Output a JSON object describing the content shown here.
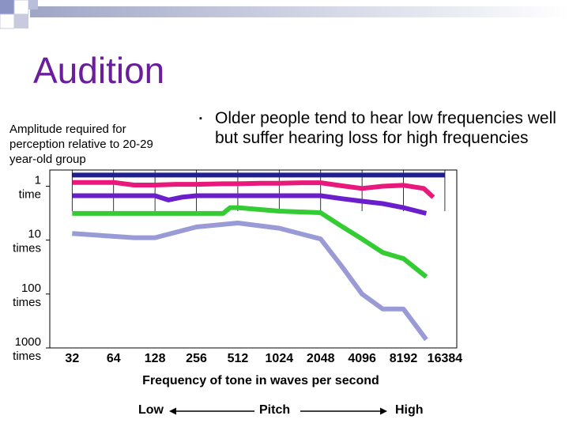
{
  "slide": {
    "title": "Audition",
    "y_description": "Amplitude required for perception relative to 20-29 year-old group",
    "bullet": "Older people tend to hear low frequencies well but suffer hearing loss for high frequencies",
    "pitch_low": "Low",
    "pitch_mid": "Pitch",
    "pitch_high": "High"
  },
  "chart_data": {
    "type": "line",
    "xlabel": "Frequency of tone in waves per second",
    "x_ticks": [
      "32",
      "64",
      "128",
      "256",
      "512",
      "1024",
      "2048",
      "4096",
      "8192",
      "16384"
    ],
    "y_ticks": [
      "1 time",
      "10 times",
      "100 times",
      "1000 times"
    ],
    "y_scale": "log",
    "y_direction": "amplitude increases downward",
    "ylim": [
      0.5,
      1000
    ],
    "grid": true,
    "series": [
      {
        "color": "#1f1f8f",
        "points": [
          [
            32,
            0.62
          ],
          [
            64,
            0.62
          ],
          [
            128,
            0.62
          ],
          [
            256,
            0.62
          ],
          [
            512,
            0.62
          ],
          [
            1024,
            0.62
          ],
          [
            2048,
            0.62
          ],
          [
            4096,
            0.62
          ],
          [
            8192,
            0.62
          ],
          [
            16384,
            0.62
          ]
        ]
      },
      {
        "color": "#e8197a",
        "points": [
          [
            32,
            0.85
          ],
          [
            64,
            0.85
          ],
          [
            90,
            0.95
          ],
          [
            128,
            0.95
          ],
          [
            180,
            0.92
          ],
          [
            256,
            0.92
          ],
          [
            400,
            0.9
          ],
          [
            512,
            0.9
          ],
          [
            750,
            0.88
          ],
          [
            1024,
            0.88
          ],
          [
            1500,
            0.86
          ],
          [
            2048,
            0.86
          ],
          [
            2900,
            0.98
          ],
          [
            4096,
            1.1
          ],
          [
            5800,
            1.0
          ],
          [
            8192,
            0.96
          ],
          [
            11500,
            1.1
          ],
          [
            13500,
            1.6
          ]
        ]
      },
      {
        "color": "#6b1fcc",
        "points": [
          [
            32,
            1.5
          ],
          [
            64,
            1.5
          ],
          [
            90,
            1.5
          ],
          [
            128,
            1.5
          ],
          [
            160,
            1.8
          ],
          [
            200,
            1.6
          ],
          [
            256,
            1.5
          ],
          [
            512,
            1.5
          ],
          [
            1024,
            1.5
          ],
          [
            2048,
            1.5
          ],
          [
            2900,
            1.7
          ],
          [
            4096,
            1.9
          ],
          [
            5800,
            2.1
          ],
          [
            8192,
            2.5
          ],
          [
            12000,
            3.2
          ]
        ]
      },
      {
        "color": "#33cc33",
        "points": [
          [
            32,
            3.2
          ],
          [
            64,
            3.2
          ],
          [
            90,
            3.2
          ],
          [
            128,
            3.2
          ],
          [
            256,
            3.2
          ],
          [
            400,
            3.2
          ],
          [
            450,
            2.5
          ],
          [
            512,
            2.5
          ],
          [
            1024,
            2.9
          ],
          [
            2048,
            3.1
          ],
          [
            2900,
            5.5
          ],
          [
            4096,
            9.5
          ],
          [
            5800,
            17
          ],
          [
            8192,
            22
          ],
          [
            12000,
            48
          ]
        ]
      },
      {
        "color": "#9a9ad6",
        "points": [
          [
            32,
            7.5
          ],
          [
            64,
            8.5
          ],
          [
            90,
            9
          ],
          [
            128,
            9
          ],
          [
            256,
            5.7
          ],
          [
            512,
            4.8
          ],
          [
            1024,
            6
          ],
          [
            2048,
            9.5
          ],
          [
            2900,
            30
          ],
          [
            4096,
            100
          ],
          [
            5800,
            190
          ],
          [
            8192,
            190
          ],
          [
            12000,
            700
          ]
        ]
      }
    ]
  }
}
